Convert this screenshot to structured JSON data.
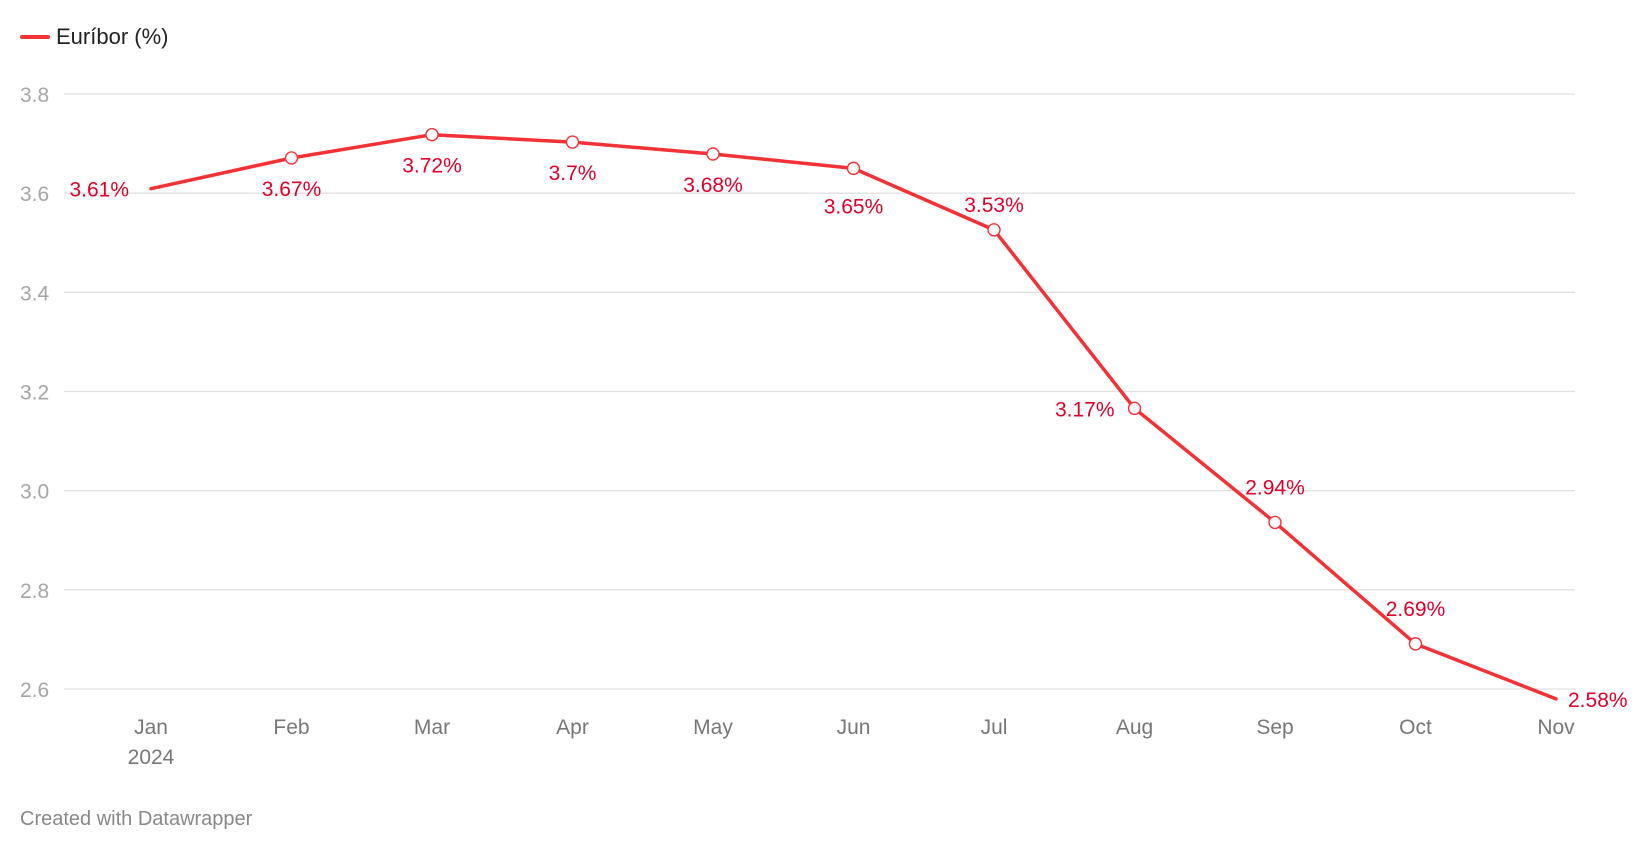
{
  "legend": {
    "label": "Euríbor (%)"
  },
  "credit": "Created with Datawrapper",
  "colors": {
    "line": "#f23237",
    "label": "#e0002b",
    "grid": "#e0e0e0"
  },
  "chart_data": {
    "type": "line",
    "title": "",
    "xlabel": "",
    "ylabel": "",
    "ylim": [
      2.6,
      3.8
    ],
    "yticks": [
      "2.6",
      "2.8",
      "3.0",
      "3.2",
      "3.4",
      "3.6",
      "3.8"
    ],
    "categories": [
      "Jan",
      "Feb",
      "Mar",
      "Apr",
      "May",
      "Jun",
      "Jul",
      "Aug",
      "Sep",
      "Oct",
      "Nov"
    ],
    "year_label": "2024",
    "grid": true,
    "legend_position": "top-left",
    "series": [
      {
        "name": "Euríbor (%)",
        "values": [
          3.609,
          3.671,
          3.718,
          3.703,
          3.679,
          3.65,
          3.526,
          3.166,
          2.936,
          2.691,
          2.58
        ],
        "labels": [
          "3.61%",
          "3.67%",
          "3.72%",
          "3.7%",
          "3.68%",
          "3.65%",
          "3.53%",
          "3.17%",
          "2.94%",
          "2.69%",
          "2.58%"
        ]
      }
    ]
  }
}
